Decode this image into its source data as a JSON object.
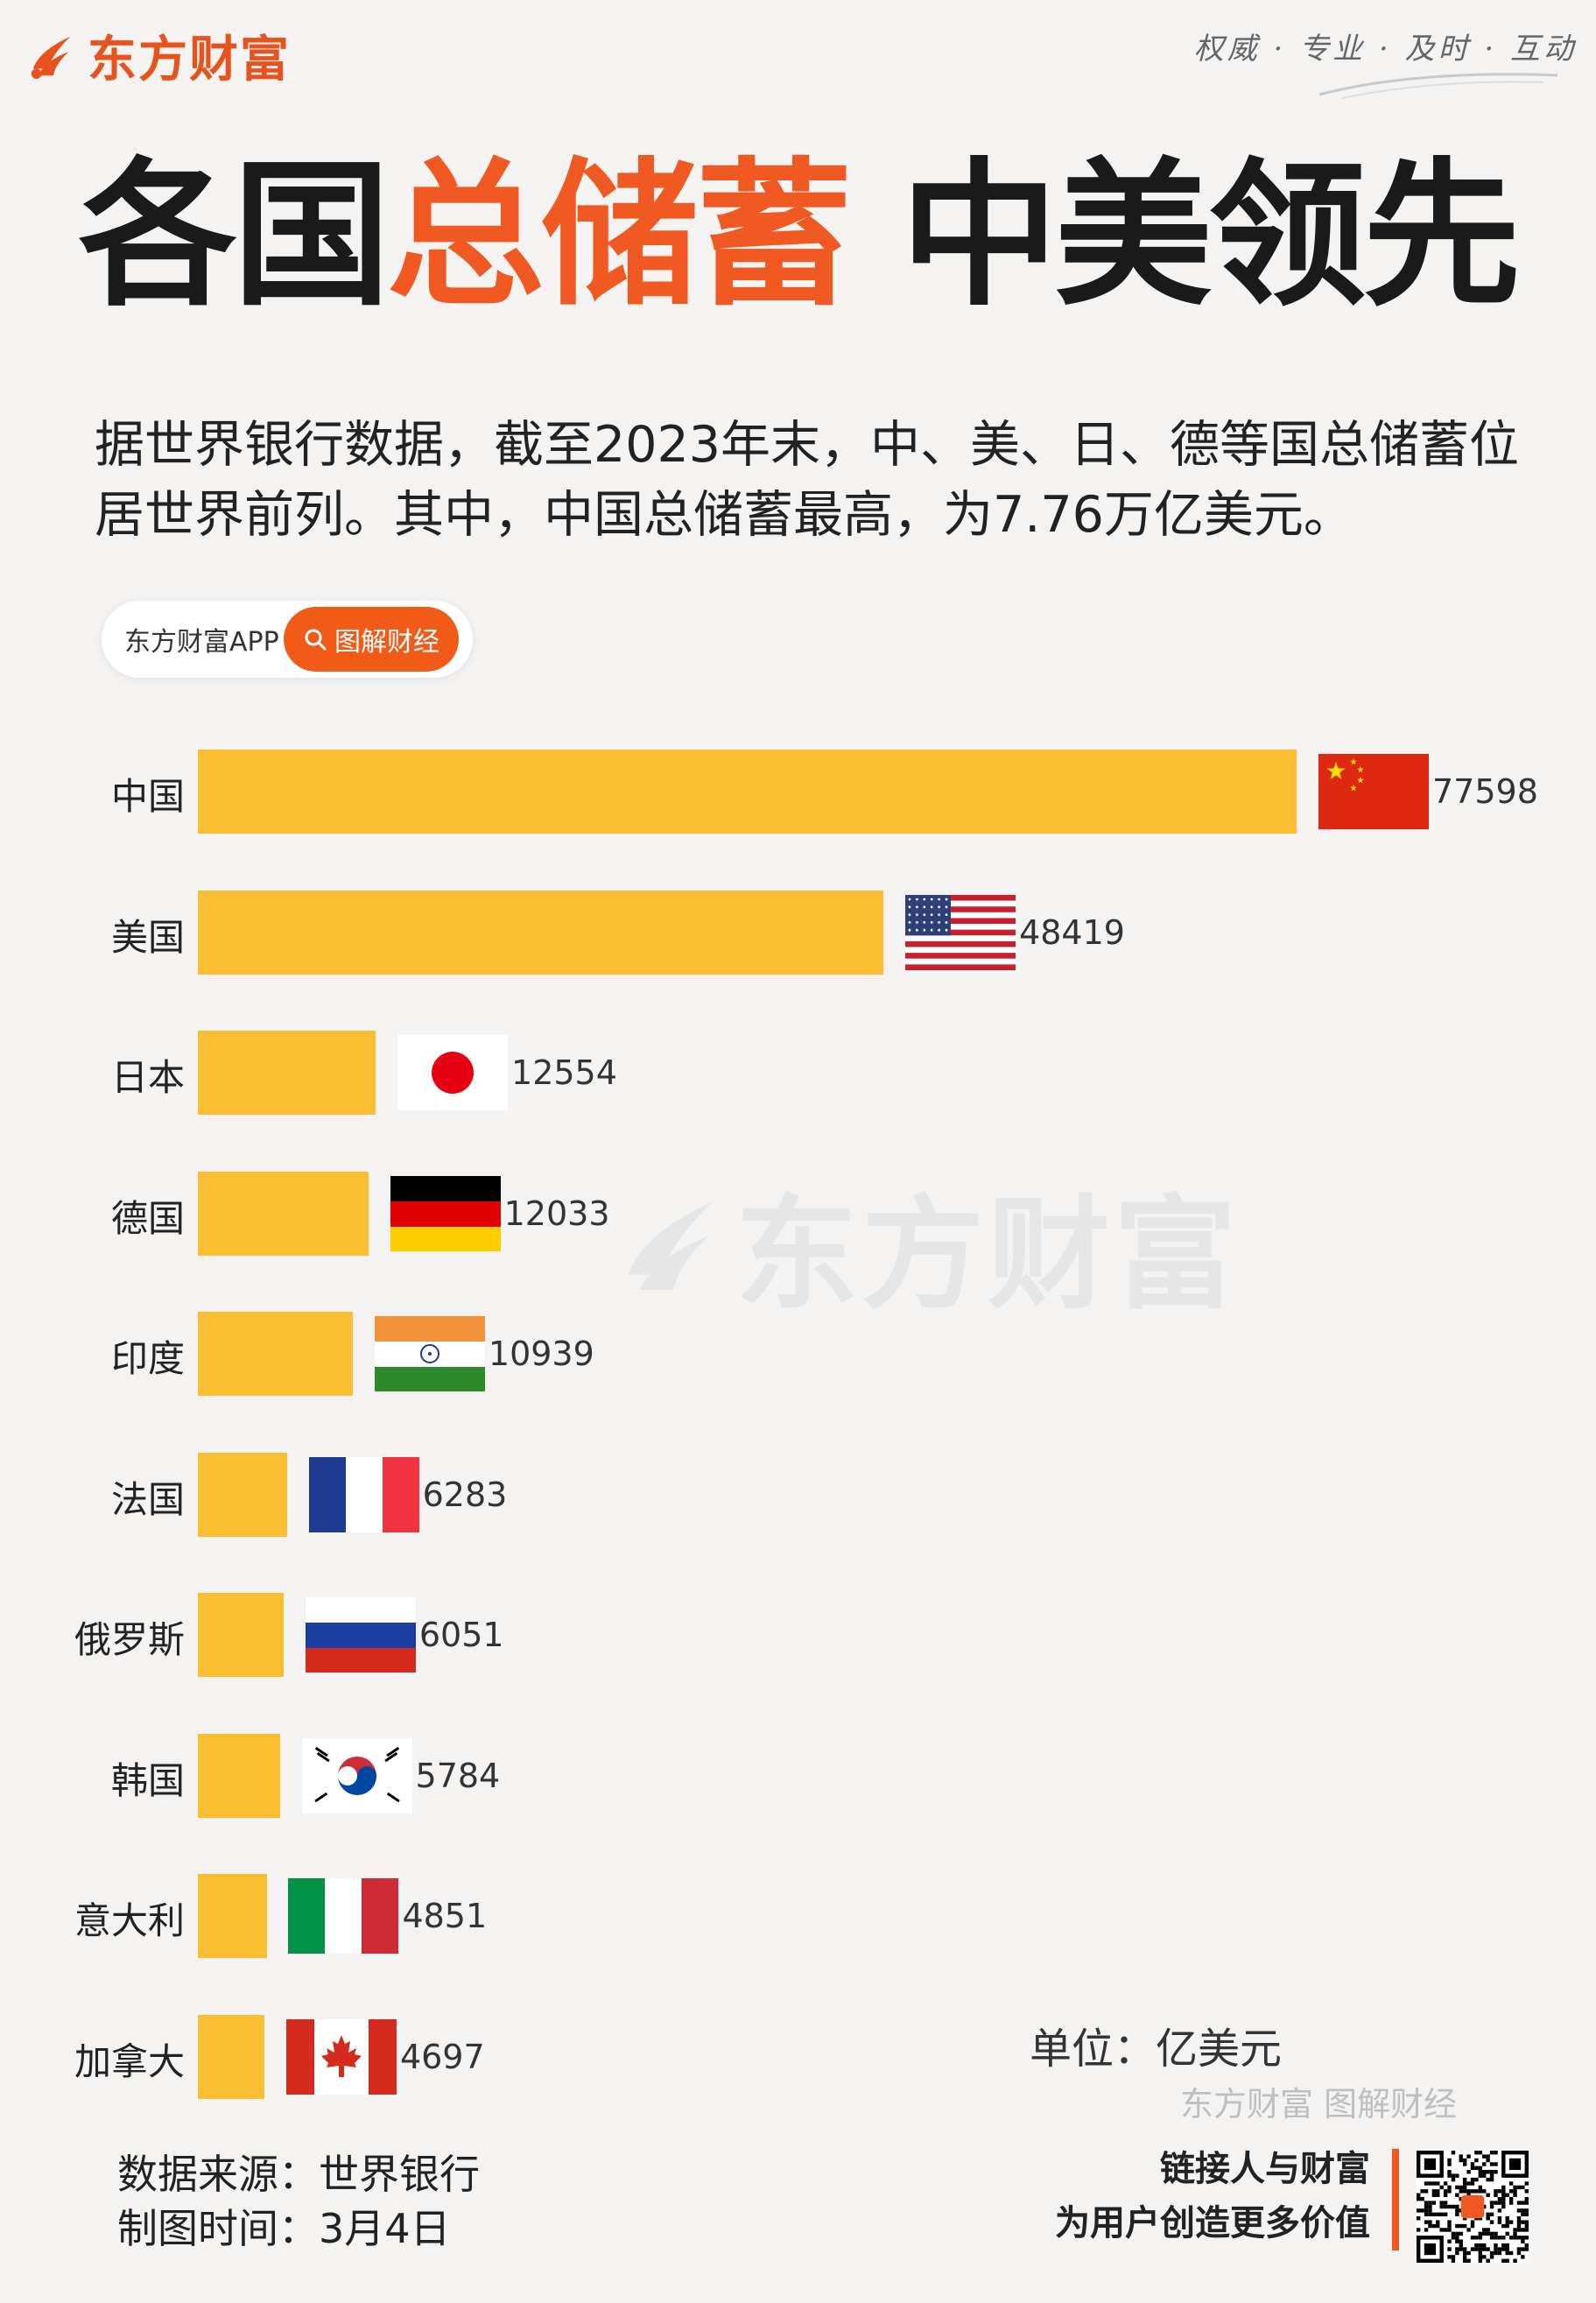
{
  "header": {
    "brand_name": "东方财富",
    "slogan": "权威 · 专业 · 及时 · 互动"
  },
  "headline": {
    "part1": "各国",
    "part2": "总储蓄",
    "part3": " 中美领先"
  },
  "intro": "据世界银行数据，截至2023年末，中、美、日、德等国总储蓄位居世界前列。其中，中国总储蓄最高，为7.76万亿美元。",
  "app_pill": {
    "app_name": "东方财富APP",
    "topic_label": "图解财经"
  },
  "watermark": "东方财富",
  "chart_data": {
    "type": "bar",
    "orientation": "horizontal",
    "categories": [
      "中国",
      "美国",
      "日本",
      "德国",
      "印度",
      "法国",
      "俄罗斯",
      "韩国",
      "意大利",
      "加拿大"
    ],
    "values": [
      77598,
      48419,
      12554,
      12033,
      10939,
      6283,
      6051,
      5784,
      4851,
      4697
    ],
    "unit": "单位：亿美元",
    "bar_color": "#f9be32",
    "legend": "none",
    "grid": false
  },
  "footer": {
    "brand_caption": "东方财富 图解财经",
    "source": "数据来源：世界银行",
    "date": "制图时间：3月4日",
    "tagline_line1": "链接人与财富",
    "tagline_line2": "为用户创造更多价值"
  },
  "colors": {
    "accent": "#f05a22",
    "background": "#f4f3f2"
  }
}
